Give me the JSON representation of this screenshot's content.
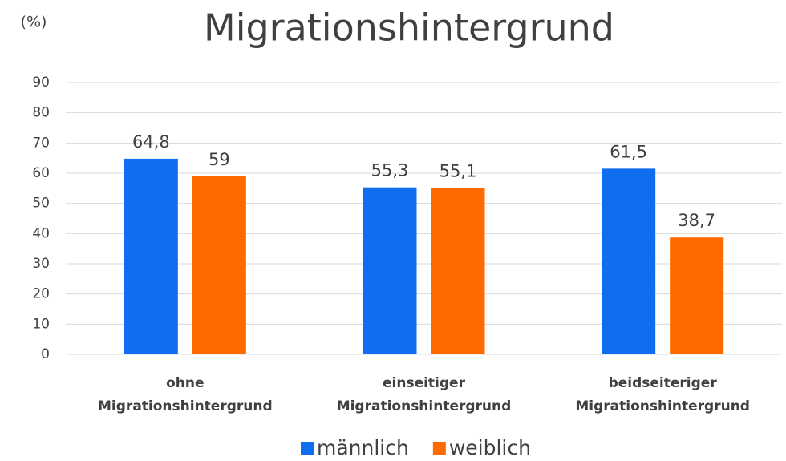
{
  "chart_data": {
    "type": "bar",
    "title": "Migrationshintergrund",
    "y_label": "(%)",
    "categories": [
      "ohne Migrationshintergrund",
      "einseitiger Migrationshintergrund",
      "beidseiteriger Migrationshintergrund"
    ],
    "series": [
      {
        "name": "männlich",
        "color": "#0f6df0",
        "values": [
          64.8,
          55.3,
          61.5
        ],
        "value_labels": [
          "64,8",
          "55,3",
          "61,5"
        ]
      },
      {
        "name": "weiblich",
        "color": "#ff6a00",
        "values": [
          59,
          55.1,
          38.7
        ],
        "value_labels": [
          "59",
          "55,1",
          "38,7"
        ]
      }
    ],
    "ylim": [
      0,
      90
    ],
    "yticks": [
      0,
      10,
      20,
      30,
      40,
      50,
      60,
      70,
      80,
      90
    ],
    "grid": true,
    "legend": "bottom"
  }
}
